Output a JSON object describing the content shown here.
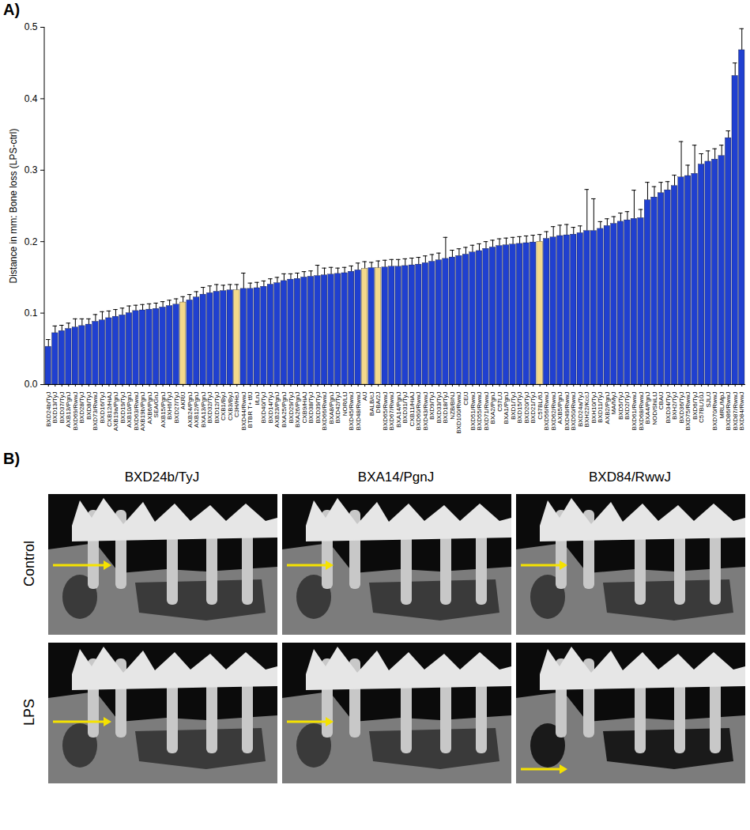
{
  "chart_data": {
    "type": "bar",
    "title": "A)",
    "y_label": "Distance in mm: Bone loss (LPS-ctrl)",
    "categories": [
      "BXD24b/TyJ",
      "BXD13/TyJ",
      "BXD37/TyJ",
      "AXB13/PgnJ",
      "BXD69/RwwJ",
      "BXD28/TyJ",
      "BXD8/TyJ",
      "BXD73/RwwJ",
      "BXD16/TyJ",
      "CXB12/HiAJ",
      "AXB19a/PgnJ",
      "BXD19/TyJ",
      "AXB10/PgnJ",
      "BXD63/RwwJ",
      "AXB19b/PgnJ",
      "AXB6/PgnJ",
      "SEA/GnJ",
      "AXB15/PgnJ",
      "BXH6/TyJ",
      "BXD27/TyJ",
      "AKR/J",
      "AXB24/PgnJ",
      "AXB12/PgnJ",
      "BXA13/PgnJ",
      "BXD32/TyJ",
      "BXD12/TyJ",
      "CXB1/ByJ",
      "CXB3/ByJ",
      "C3H/HeJ",
      "BXD44/RwwJ",
      "BTBR T+ tf/J",
      "I/LnJ",
      "BXD40/TyJ",
      "BXD14/TyJ",
      "AXB23/PgnJ",
      "BXA25/PgnJ",
      "BXD29/TyJ",
      "BXA26/PgnJ",
      "CXB9/HiAJ",
      "BXD38/TyJ",
      "BXD39/TyJ",
      "BXD66/RwwJ",
      "BXA8/PgnJ",
      "BXD42/TyJ",
      "NOR/LtJ",
      "BXD45/RwwJ",
      "BXD48/RwwJ",
      "A/J",
      "BALB/cJ",
      "DBA/2J",
      "BXD65/RwwJ",
      "BXD67/RwwJ",
      "BXA14/PgnJ",
      "BXD31/TyJ",
      "CXB11/HiAJ",
      "BXD60/RwwJ",
      "BXD43/RwwJ",
      "BXD9/TyJ",
      "BXD33/TyJ",
      "BXD18/TyJ",
      "NZB/BlNJ",
      "BXD100/RwwJ",
      "CE/J",
      "BXD51/RwwJ",
      "BXD55/RwwJ",
      "BXD71/RwwJ",
      "BXA2/PgnJ",
      "C57L/J",
      "BXA1/PgnJ",
      "BXD1/TyJ",
      "BXD15/TyJ",
      "BXD20/TyJ",
      "BXD21/TyJ",
      "C57BL/6J",
      "BXD56/RwwJ",
      "BXD62/RwwJ",
      "AXB5/PgnJ",
      "BXD49/RwwJ",
      "BXD50/RwwJ",
      "BXD24a/TyJ",
      "BXH22/KccJ",
      "BXH10/TyJ",
      "BXD11/TyJ",
      "AXB2/PgnJ",
      "MA/MyJ",
      "BXD5/TyJ",
      "BXD2/TyJ",
      "BXD61/RwwJ",
      "BXD68/RwwJ",
      "BXA4/PgnJ",
      "NOD/ShiLtJ",
      "CBA/J",
      "BXD34/TyJ",
      "BXH2/TyJ",
      "BXD36/TyJ",
      "BXD75/RwwJ",
      "BXD6/TyJ",
      "C57BL/10J",
      "SJL/J",
      "BXD70/RwwJ",
      "MRL/MpJ",
      "BXD86/RwwJ",
      "BXD87/RwwJ",
      "BXD84/RwwJ"
    ],
    "values": [
      0.053,
      0.072,
      0.075,
      0.078,
      0.08,
      0.082,
      0.084,
      0.088,
      0.09,
      0.093,
      0.095,
      0.097,
      0.1,
      0.103,
      0.104,
      0.105,
      0.106,
      0.108,
      0.11,
      0.112,
      0.115,
      0.118,
      0.122,
      0.126,
      0.128,
      0.13,
      0.131,
      0.132,
      0.132,
      0.134,
      0.134,
      0.135,
      0.137,
      0.14,
      0.142,
      0.145,
      0.147,
      0.148,
      0.15,
      0.151,
      0.152,
      0.153,
      0.154,
      0.155,
      0.156,
      0.158,
      0.16,
      0.162,
      0.163,
      0.163,
      0.164,
      0.165,
      0.165,
      0.166,
      0.167,
      0.168,
      0.17,
      0.172,
      0.174,
      0.176,
      0.178,
      0.18,
      0.182,
      0.185,
      0.187,
      0.19,
      0.192,
      0.194,
      0.195,
      0.196,
      0.197,
      0.198,
      0.199,
      0.2,
      0.204,
      0.206,
      0.208,
      0.209,
      0.21,
      0.212,
      0.215,
      0.215,
      0.218,
      0.222,
      0.225,
      0.228,
      0.23,
      0.232,
      0.233,
      0.258,
      0.262,
      0.268,
      0.272,
      0.278,
      0.29,
      0.292,
      0.295,
      0.308,
      0.312,
      0.315,
      0.32,
      0.345,
      0.432,
      0.468
    ],
    "errors": [
      0.01,
      0.01,
      0.008,
      0.008,
      0.012,
      0.01,
      0.008,
      0.01,
      0.012,
      0.01,
      0.01,
      0.01,
      0.01,
      0.008,
      0.008,
      0.008,
      0.008,
      0.008,
      0.008,
      0.008,
      0.008,
      0.008,
      0.008,
      0.01,
      0.01,
      0.01,
      0.008,
      0.008,
      0.008,
      0.022,
      0.008,
      0.008,
      0.008,
      0.008,
      0.008,
      0.01,
      0.008,
      0.008,
      0.008,
      0.008,
      0.015,
      0.01,
      0.01,
      0.008,
      0.008,
      0.008,
      0.01,
      0.01,
      0.008,
      0.01,
      0.01,
      0.01,
      0.01,
      0.01,
      0.01,
      0.01,
      0.01,
      0.01,
      0.01,
      0.03,
      0.01,
      0.01,
      0.01,
      0.01,
      0.01,
      0.01,
      0.01,
      0.01,
      0.01,
      0.01,
      0.01,
      0.01,
      0.01,
      0.01,
      0.01,
      0.015,
      0.015,
      0.015,
      0.01,
      0.01,
      0.058,
      0.045,
      0.01,
      0.01,
      0.01,
      0.012,
      0.012,
      0.04,
      0.012,
      0.025,
      0.015,
      0.015,
      0.012,
      0.015,
      0.05,
      0.015,
      0.04,
      0.015,
      0.015,
      0.015,
      0.015,
      0.01,
      0.018,
      0.03
    ],
    "colors": [
      "#2040d0",
      "#2040d0",
      "#2040d0",
      "#2040d0",
      "#2040d0",
      "#2040d0",
      "#2040d0",
      "#2040d0",
      "#2040d0",
      "#2040d0",
      "#2040d0",
      "#2040d0",
      "#2040d0",
      "#2040d0",
      "#2040d0",
      "#2040d0",
      "#2040d0",
      "#2040d0",
      "#2040d0",
      "#2040d0",
      "#f3d98b",
      "#2040d0",
      "#2040d0",
      "#2040d0",
      "#2040d0",
      "#2040d0",
      "#2040d0",
      "#2040d0",
      "#f3d98b",
      "#2040d0",
      "#2040d0",
      "#2040d0",
      "#2040d0",
      "#2040d0",
      "#2040d0",
      "#2040d0",
      "#2040d0",
      "#2040d0",
      "#2040d0",
      "#2040d0",
      "#2040d0",
      "#2040d0",
      "#2040d0",
      "#2040d0",
      "#2040d0",
      "#2040d0",
      "#2040d0",
      "#f3d98b",
      "#2040d0",
      "#f3d98b",
      "#2040d0",
      "#2040d0",
      "#2040d0",
      "#2040d0",
      "#2040d0",
      "#2040d0",
      "#2040d0",
      "#2040d0",
      "#2040d0",
      "#2040d0",
      "#2040d0",
      "#2040d0",
      "#2040d0",
      "#2040d0",
      "#2040d0",
      "#2040d0",
      "#2040d0",
      "#2040d0",
      "#2040d0",
      "#2040d0",
      "#2040d0",
      "#2040d0",
      "#2040d0",
      "#f3d98b",
      "#2040d0",
      "#2040d0",
      "#2040d0",
      "#2040d0",
      "#2040d0",
      "#2040d0",
      "#2040d0",
      "#2040d0",
      "#2040d0",
      "#2040d0",
      "#2040d0",
      "#2040d0",
      "#2040d0",
      "#2040d0",
      "#2040d0",
      "#2040d0",
      "#2040d0",
      "#2040d0",
      "#2040d0",
      "#2040d0",
      "#2040d0",
      "#2040d0",
      "#2040d0",
      "#2040d0",
      "#2040d0",
      "#2040d0",
      "#2040d0",
      "#2040d0",
      "#2040d0",
      "#2040d0"
    ],
    "ylim": [
      0,
      0.5
    ],
    "yticks": [
      {
        "value": 0,
        "label": "0.0"
      },
      0.1,
      0.2,
      0.3,
      0.4,
      0.5
    ]
  },
  "image_panel": {
    "title": "B)",
    "columns": [
      "BXD24b/TyJ",
      "BXA14/PgnJ",
      "BXD84/RwwJ"
    ],
    "rows": [
      "Control",
      "LPS"
    ]
  }
}
